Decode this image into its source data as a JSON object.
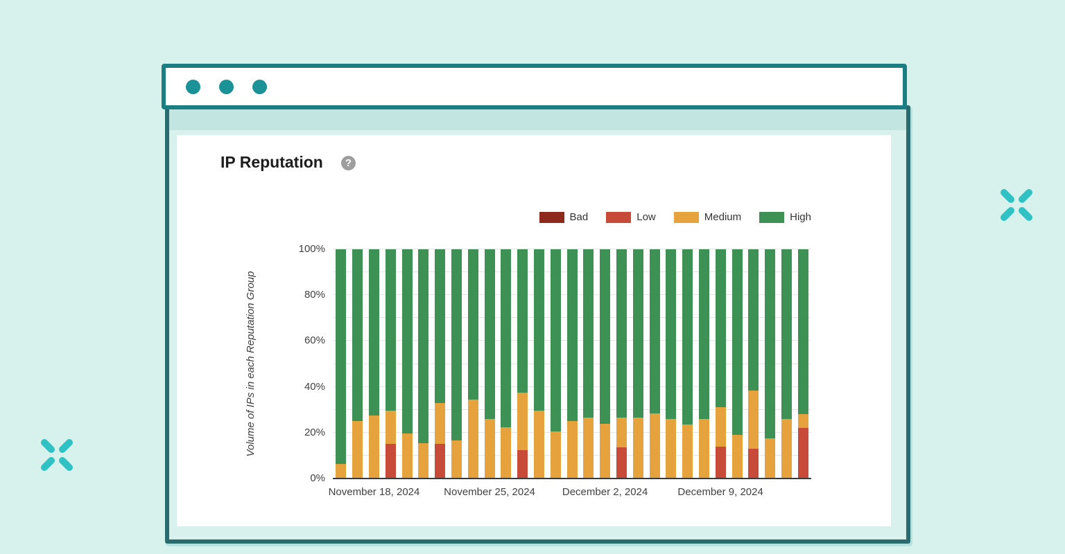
{
  "window": {
    "controls": {
      "dot_count": 3,
      "dot_color": "#1b9396"
    }
  },
  "card": {
    "title": "IP Reputation",
    "help_glyph": "?"
  },
  "decor": {
    "sparkle_color": "#2fc1c3"
  },
  "colors": {
    "page_bg": "#d7f2ec",
    "window_border": "#1a7e82",
    "body_border": "#2a6b70",
    "card_bg": "#ffffff",
    "axis_text": "#404040",
    "gridline": "#e4e4e4"
  },
  "chart_data": {
    "type": "bar",
    "variant": "stacked-100-percent",
    "title": "IP Reputation",
    "xlabel": "",
    "ylabel": "Volume of IPs in each Reputation Group",
    "ylim": [
      0,
      100
    ],
    "grid": {
      "step": 10,
      "axis": "horizontal"
    },
    "legend_position": "top-right",
    "colors": {
      "bad": "#8e2a1b",
      "low": "#c84a38",
      "medium": "#e6a23c",
      "high": "#3d9155"
    },
    "series_stack_order": [
      "bad",
      "low",
      "medium",
      "high"
    ],
    "legend": {
      "entries": [
        {
          "name": "Bad",
          "key": "bad",
          "color": "#8e2a1b"
        },
        {
          "name": "Low",
          "key": "low",
          "color": "#c84a38"
        },
        {
          "name": "Medium",
          "key": "medium",
          "color": "#e6a23c"
        },
        {
          "name": "High",
          "key": "high",
          "color": "#3d9155"
        }
      ]
    },
    "y_ticks": [
      {
        "label": "0%",
        "value": 0
      },
      {
        "label": "20%",
        "value": 20
      },
      {
        "label": "40%",
        "value": 40
      },
      {
        "label": "60%",
        "value": 60
      },
      {
        "label": "80%",
        "value": 80
      },
      {
        "label": "100%",
        "value": 100
      }
    ],
    "x_tick_labels": [
      {
        "label": "November 18, 2024",
        "bar_index": 2
      },
      {
        "label": "November 25, 2024",
        "bar_index": 9
      },
      {
        "label": "December 2, 2024",
        "bar_index": 16
      },
      {
        "label": "December 9, 2024",
        "bar_index": 23
      }
    ],
    "bar_count": 29,
    "bars": [
      {
        "bad": 0,
        "low": 0,
        "medium": 6.5,
        "high": 93.5
      },
      {
        "bad": 0,
        "low": 0,
        "medium": 25,
        "high": 75
      },
      {
        "bad": 0,
        "low": 0,
        "medium": 27.5,
        "high": 72.5
      },
      {
        "bad": 0,
        "low": 15,
        "medium": 14.5,
        "high": 70.5
      },
      {
        "bad": 0,
        "low": 0,
        "medium": 19.5,
        "high": 80.5
      },
      {
        "bad": 0,
        "low": 0,
        "medium": 15.5,
        "high": 84.5
      },
      {
        "bad": 0,
        "low": 15,
        "medium": 18,
        "high": 67
      },
      {
        "bad": 0,
        "low": 0,
        "medium": 16.5,
        "high": 83.5
      },
      {
        "bad": 0,
        "low": 0,
        "medium": 34.5,
        "high": 65.5
      },
      {
        "bad": 0,
        "low": 0,
        "medium": 26,
        "high": 74
      },
      {
        "bad": 0,
        "low": 0,
        "medium": 22.5,
        "high": 77.5
      },
      {
        "bad": 0,
        "low": 12.5,
        "medium": 25,
        "high": 62.5
      },
      {
        "bad": 0,
        "low": 0,
        "medium": 29.5,
        "high": 70.5
      },
      {
        "bad": 0,
        "low": 0,
        "medium": 20.5,
        "high": 79.5
      },
      {
        "bad": 0,
        "low": 0,
        "medium": 25,
        "high": 75
      },
      {
        "bad": 0,
        "low": 0,
        "medium": 26.5,
        "high": 73.5
      },
      {
        "bad": 0,
        "low": 0,
        "medium": 24,
        "high": 76
      },
      {
        "bad": 0,
        "low": 13.5,
        "medium": 13,
        "high": 73.5
      },
      {
        "bad": 0,
        "low": 0,
        "medium": 26.5,
        "high": 73.5
      },
      {
        "bad": 0,
        "low": 0,
        "medium": 28.5,
        "high": 71.5
      },
      {
        "bad": 0,
        "low": 0,
        "medium": 26,
        "high": 74
      },
      {
        "bad": 0,
        "low": 0,
        "medium": 23.5,
        "high": 76.5
      },
      {
        "bad": 0,
        "low": 0,
        "medium": 26,
        "high": 74
      },
      {
        "bad": 0,
        "low": 14,
        "medium": 17,
        "high": 69
      },
      {
        "bad": 0,
        "low": 0,
        "medium": 19,
        "high": 81
      },
      {
        "bad": 0,
        "low": 13,
        "medium": 25.5,
        "high": 61.5
      },
      {
        "bad": 0,
        "low": 0,
        "medium": 17.5,
        "high": 82.5
      },
      {
        "bad": 0,
        "low": 0,
        "medium": 26,
        "high": 74
      },
      {
        "bad": 0,
        "low": 22,
        "medium": 6,
        "high": 72
      }
    ]
  }
}
